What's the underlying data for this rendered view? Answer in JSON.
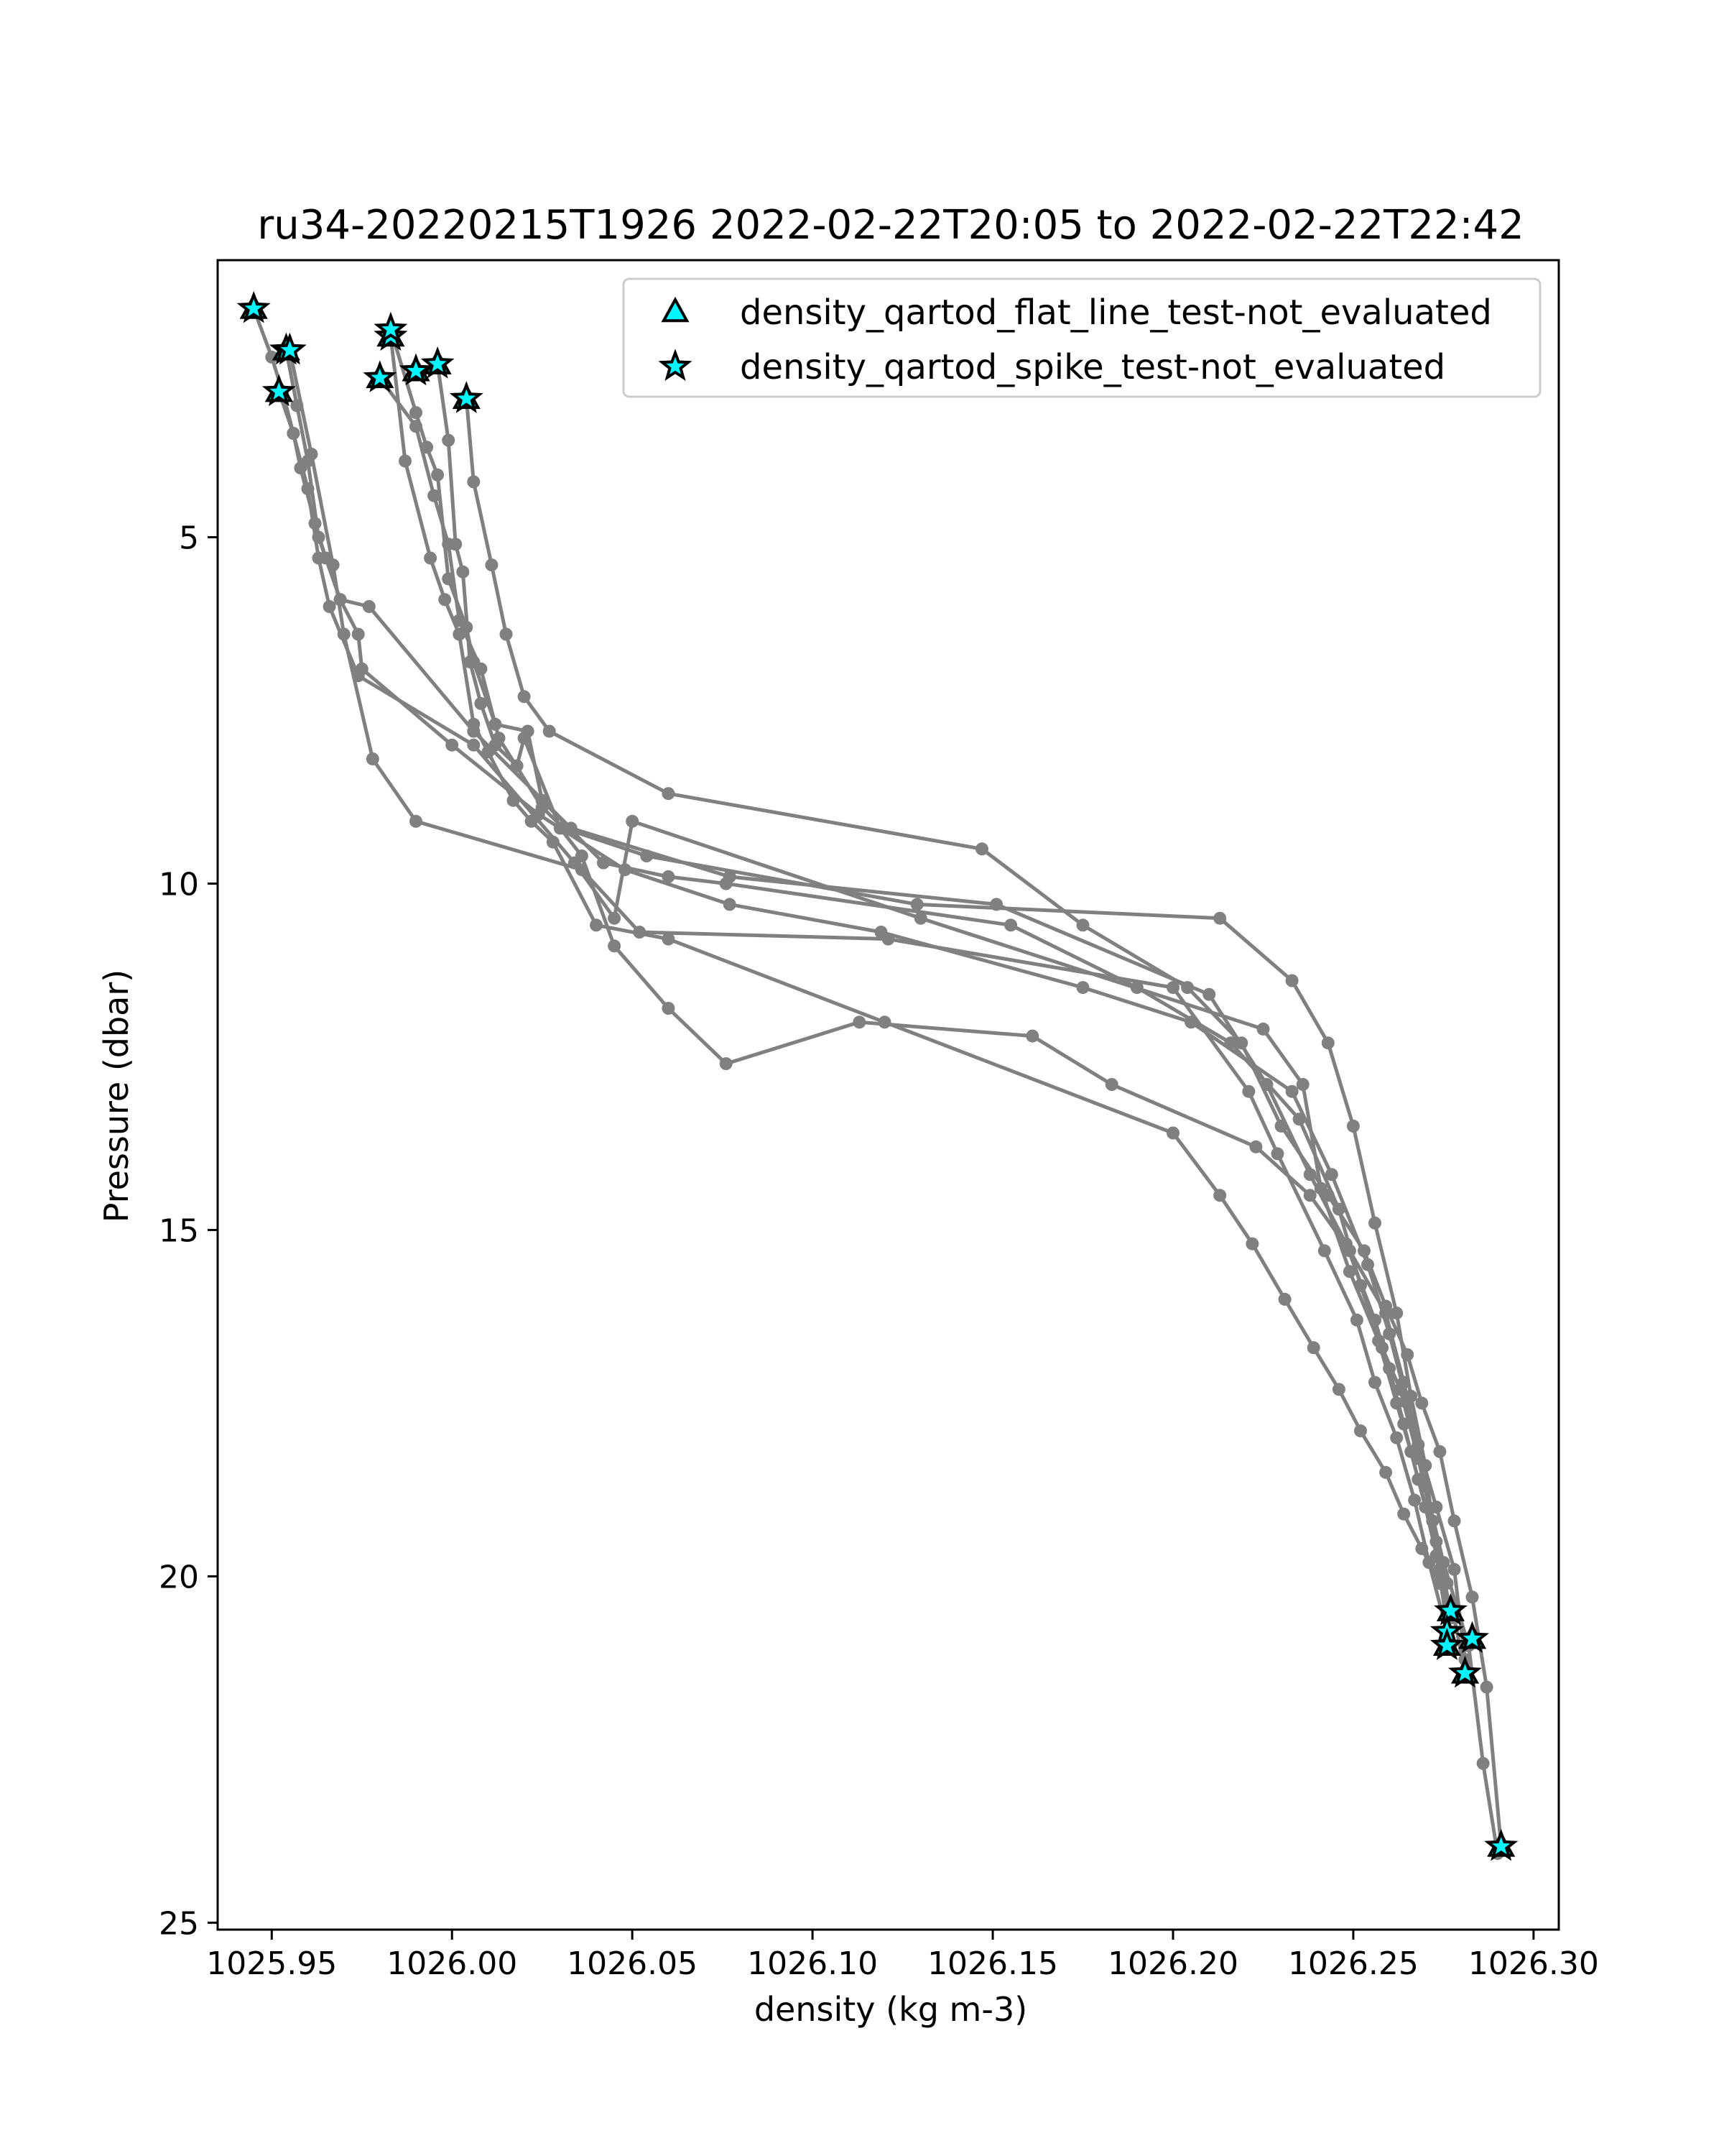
{
  "chart_data": {
    "type": "line",
    "title": "ru34-20220215T1926 2022-02-22T20:05 to 2022-02-22T22:42",
    "xlabel": "density (kg m-3)",
    "ylabel": "Pressure (dbar)",
    "xlim": [
      1025.935,
      1026.307
    ],
    "ylim": [
      25.1,
      1.0
    ],
    "y_inverted": true,
    "grid": false,
    "legend_position": "top-right",
    "xticks": [
      1025.95,
      1026.0,
      1026.05,
      1026.1,
      1026.15,
      1026.2,
      1026.25,
      1026.3
    ],
    "xtick_labels": [
      "1025.95",
      "1026.00",
      "1026.05",
      "1026.10",
      "1026.15",
      "1026.20",
      "1026.25",
      "1026.30"
    ],
    "yticks": [
      5,
      10,
      15,
      20,
      25
    ],
    "ytick_labels": [
      "5",
      "10",
      "15",
      "20",
      "25"
    ],
    "line_color": "#808080",
    "marker_fill": "#00f5ff",
    "marker_edge": "#000000",
    "legend": [
      {
        "label": "density_qartod_flat_line_test-not_evaluated",
        "marker": "triangle"
      },
      {
        "label": "density_qartod_spike_test-not_evaluated",
        "marker": "star"
      }
    ],
    "profiles": [
      {
        "x": [
          1025.945,
          1025.95,
          1025.953,
          1025.956,
          1025.958,
          1025.962,
          1025.965,
          1025.969,
          1025.974,
          1025.975,
          1026.0,
          1026.024,
          1026.048,
          1026.077,
          1026.119,
          1026.175,
          1026.205,
          1026.233,
          1026.244,
          1026.254,
          1026.26,
          1026.265,
          1026.27,
          1026.275,
          1026.282,
          1026.286,
          1026.29
        ],
        "y": [
          1.7,
          2.4,
          2.9,
          3.5,
          4.0,
          4.8,
          5.3,
          5.9,
          6.4,
          6.9,
          8.0,
          9.0,
          9.8,
          10.3,
          10.7,
          11.5,
          12.0,
          13.0,
          14.2,
          15.5,
          16.5,
          17.5,
          18.7,
          19.8,
          21.0,
          22.7,
          24.0
        ]
      },
      {
        "x": [
          1025.954,
          1025.957,
          1025.96,
          1025.963,
          1025.969,
          1025.977,
          1026.006,
          1026.033,
          1026.077,
          1026.151,
          1026.21,
          1026.226,
          1026.238,
          1026.248,
          1026.256,
          1026.26,
          1026.264,
          1026.268,
          1026.273,
          1026.277
        ],
        "y": [
          2.3,
          3.1,
          3.9,
          5.0,
          5.9,
          6.0,
          7.8,
          9.2,
          9.9,
          10.3,
          11.6,
          12.9,
          14.2,
          15.2,
          16.3,
          17.0,
          17.8,
          18.6,
          19.5,
          20.5
        ]
      },
      {
        "x": [
          1025.952,
          1025.956,
          1025.96,
          1025.963,
          1025.966,
          1025.974,
          1026.006,
          1026.034,
          1026.045,
          1026.05,
          1026.13,
          1026.225,
          1026.236,
          1026.241,
          1026.249,
          1026.257,
          1026.262,
          1026.266,
          1026.27,
          1026.274,
          1026.277
        ],
        "y": [
          2.9,
          3.5,
          4.3,
          5.3,
          6.0,
          7.0,
          8.0,
          9.7,
          10.5,
          9.1,
          10.5,
          12.1,
          12.9,
          14.4,
          15.6,
          16.6,
          17.5,
          18.2,
          19.0,
          19.9,
          20.6
        ]
      },
      {
        "x": [
          1025.955,
          1025.961,
          1025.967,
          1025.97,
          1025.978,
          1025.99,
          1026.036,
          1026.052,
          1026.121,
          1026.2,
          1026.221,
          1026.229,
          1026.242,
          1026.251,
          1026.256,
          1026.262,
          1026.267,
          1026.271,
          1026.276
        ],
        "y": [
          2.3,
          3.8,
          5.4,
          6.4,
          8.2,
          9.1,
          9.8,
          10.7,
          10.8,
          11.5,
          13.0,
          13.9,
          15.3,
          16.3,
          17.2,
          18.0,
          18.9,
          19.8,
          20.8
        ]
      },
      {
        "x": [
          1025.983,
          1025.987,
          1025.994,
          1025.998,
          1026.002,
          1026.006,
          1026.01,
          1026.017,
          1026.022,
          1026.028,
          1026.04,
          1026.06,
          1026.12,
          1026.2,
          1026.213,
          1026.222,
          1026.231,
          1026.239,
          1026.246,
          1026.252,
          1026.259,
          1026.264,
          1026.269,
          1026.274,
          1026.278,
          1026.281
        ],
        "y": [
          2.1,
          3.9,
          5.3,
          5.9,
          6.4,
          7.7,
          8.1,
          8.8,
          9.1,
          9.4,
          10.6,
          10.8,
          12.0,
          13.6,
          14.5,
          15.2,
          16.0,
          16.7,
          17.3,
          17.9,
          18.5,
          19.1,
          19.6,
          20.1,
          20.6,
          21.4
        ]
      },
      {
        "x": [
          1025.983,
          1025.99,
          1025.993,
          1025.996,
          1025.999,
          1026.004,
          1026.006,
          1026.012,
          1026.021,
          1026.025,
          1026.042,
          1026.06,
          1026.076,
          1026.155,
          1026.19,
          1026.216,
          1026.235,
          1026.246,
          1026.252,
          1026.258,
          1026.263,
          1026.268,
          1026.272,
          1026.276
        ],
        "y": [
          2.0,
          3.2,
          3.7,
          4.1,
          5.6,
          6.3,
          6.8,
          7.7,
          7.8,
          8.8,
          9.7,
          9.9,
          10.0,
          10.6,
          11.5,
          12.3,
          13.4,
          14.7,
          15.8,
          16.7,
          17.3,
          18.3,
          19.2,
          20.1
        ]
      },
      {
        "x": [
          1025.996,
          1025.999,
          1026.001,
          1026.003,
          1026.005,
          1026.008,
          1026.012,
          1026.018,
          1026.02,
          1026.03,
          1026.036,
          1026.045,
          1026.06,
          1026.076,
          1026.113,
          1026.161,
          1026.183,
          1026.223,
          1026.238,
          1026.249,
          1026.259,
          1026.264,
          1026.268,
          1026.273,
          1026.278,
          1026.281
        ],
        "y": [
          2.5,
          3.6,
          5.1,
          5.5,
          6.8,
          7.4,
          8.0,
          8.3,
          7.9,
          9.2,
          9.6,
          10.9,
          11.8,
          12.6,
          12.0,
          12.2,
          12.9,
          13.8,
          14.5,
          15.3,
          16.2,
          17.2,
          18.1,
          19.0,
          19.9,
          21.2
        ]
      },
      {
        "x": [
          1025.98,
          1025.99,
          1025.995,
          1025.999,
          1026.002,
          1026.008,
          1026.013,
          1026.025,
          1026.031,
          1026.054,
          1026.129,
          1026.213,
          1026.233,
          1026.243,
          1026.25,
          1026.256,
          1026.262,
          1026.266,
          1026.27,
          1026.273,
          1026.277
        ],
        "y": [
          2.7,
          3.4,
          4.4,
          5.1,
          6.2,
          6.9,
          7.9,
          8.9,
          9.2,
          9.6,
          10.3,
          10.5,
          11.4,
          12.3,
          13.5,
          14.9,
          16.2,
          17.4,
          18.4,
          19.7,
          21.0
        ]
      },
      {
        "x": [
          1026.004,
          1026.006,
          1026.011,
          1026.015,
          1026.02,
          1026.027,
          1026.06,
          1026.147,
          1026.175,
          1026.204,
          1026.219,
          1026.23,
          1026.243,
          1026.253,
          1026.259,
          1026.265,
          1026.269,
          1026.274,
          1026.278,
          1026.283,
          1026.287,
          1026.291
        ],
        "y": [
          3.0,
          4.2,
          5.4,
          6.4,
          7.3,
          7.8,
          8.7,
          9.5,
          10.6,
          11.5,
          12.3,
          13.5,
          14.5,
          15.3,
          16.1,
          16.8,
          17.5,
          18.2,
          19.2,
          20.3,
          21.6,
          23.9
        ]
      }
    ],
    "spike_test_not_evaluated": [
      {
        "x": 1025.945,
        "y": 1.7
      },
      {
        "x": 1025.954,
        "y": 2.3
      },
      {
        "x": 1025.952,
        "y": 2.9
      },
      {
        "x": 1025.955,
        "y": 2.3
      },
      {
        "x": 1025.98,
        "y": 2.7
      },
      {
        "x": 1025.983,
        "y": 2.1
      },
      {
        "x": 1025.983,
        "y": 2.0
      },
      {
        "x": 1025.99,
        "y": 2.6
      },
      {
        "x": 1025.996,
        "y": 2.5
      },
      {
        "x": 1026.004,
        "y": 3.0
      },
      {
        "x": 1026.277,
        "y": 20.5
      },
      {
        "x": 1026.276,
        "y": 20.8
      },
      {
        "x": 1026.283,
        "y": 20.9
      },
      {
        "x": 1026.276,
        "y": 21.0
      },
      {
        "x": 1026.281,
        "y": 21.4
      },
      {
        "x": 1026.291,
        "y": 23.9
      }
    ],
    "flat_line_test_not_evaluated": [
      {
        "x": 1025.945,
        "y": 1.7
      },
      {
        "x": 1025.954,
        "y": 2.3
      },
      {
        "x": 1025.952,
        "y": 2.9
      },
      {
        "x": 1025.98,
        "y": 2.7
      },
      {
        "x": 1025.983,
        "y": 2.1
      },
      {
        "x": 1025.99,
        "y": 2.6
      },
      {
        "x": 1025.996,
        "y": 2.5
      },
      {
        "x": 1026.004,
        "y": 3.0
      },
      {
        "x": 1026.277,
        "y": 20.5
      },
      {
        "x": 1026.276,
        "y": 21.0
      },
      {
        "x": 1026.283,
        "y": 20.9
      },
      {
        "x": 1026.281,
        "y": 21.4
      },
      {
        "x": 1026.291,
        "y": 23.9
      }
    ]
  }
}
